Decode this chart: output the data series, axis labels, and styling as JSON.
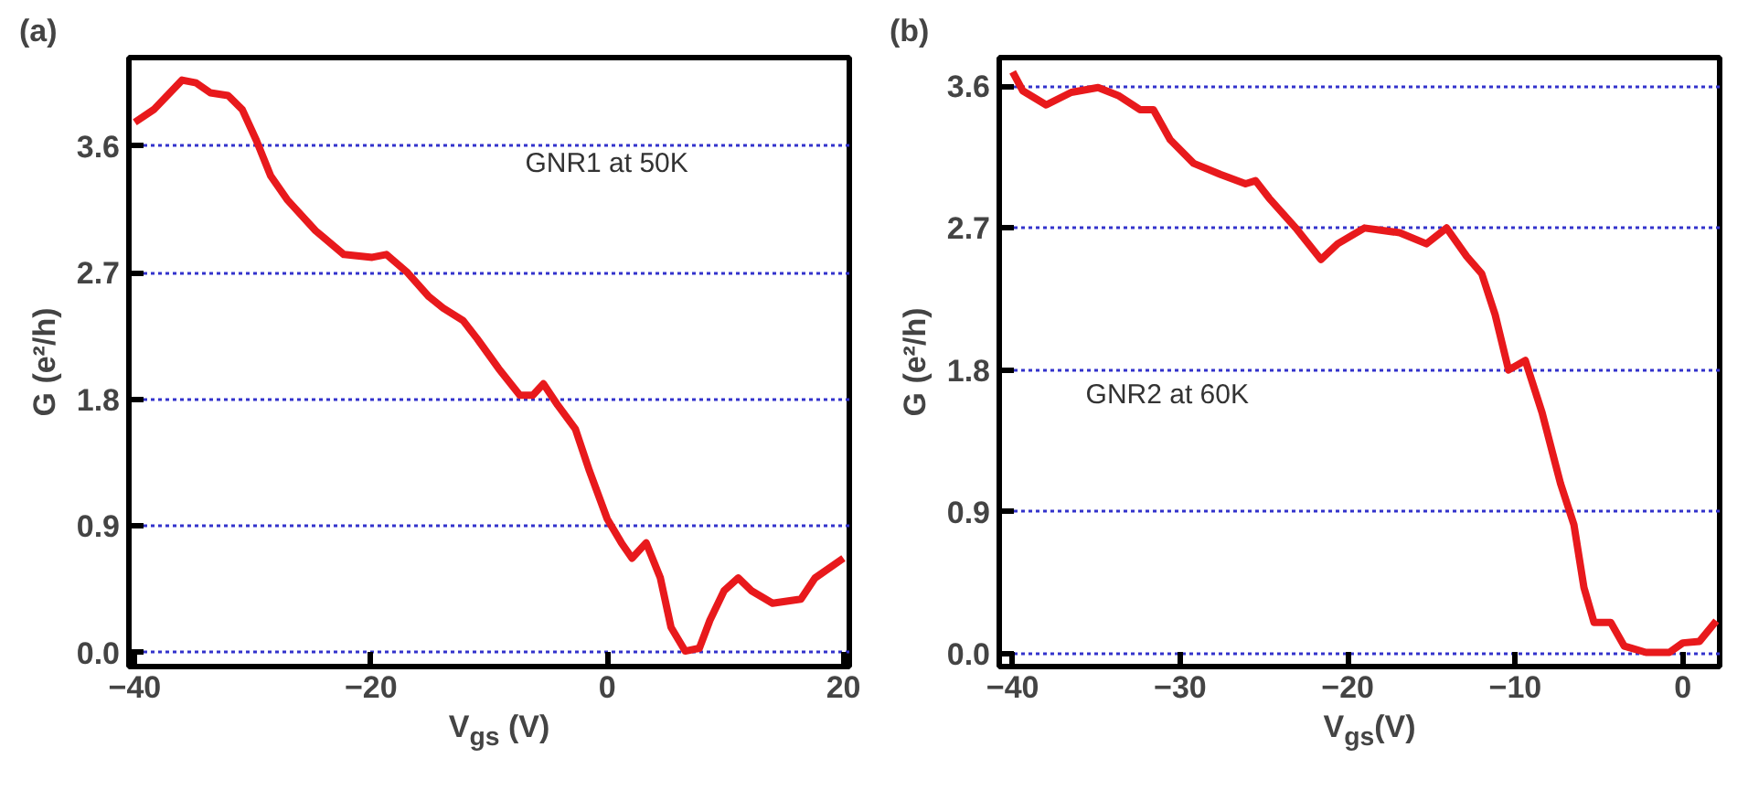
{
  "chart_data": [
    {
      "type": "line",
      "title": "(a)",
      "xlabel": "V$_{gs}$ (V)",
      "ylabel": "G (e²/h)",
      "annotations": [
        "GNR1 at 50K"
      ],
      "xlim": [
        -40.5,
        20.5
      ],
      "ylim": [
        -0.1,
        4.23
      ],
      "xticks": [
        -40,
        -20,
        0,
        20
      ],
      "yticks": [
        {
          "value": 0,
          "label": "0.0"
        },
        0.9,
        1.8,
        2.7,
        3.6
      ],
      "grid": "y",
      "series": [
        {
          "color": "#e8191c",
          "x": [
            -40,
            -38.4,
            -36,
            -34.8,
            -33.6,
            -32.1,
            -30.9,
            -29.7,
            -28.5,
            -27.1,
            -24.7,
            -22.3,
            -19.9,
            -18.7,
            -16.9,
            -15.1,
            -13.9,
            -12.2,
            -11.0,
            -9.2,
            -7.4,
            -6.3,
            -5.4,
            -4.2,
            -2.7,
            -1.5,
            0.0,
            1.2,
            2.1,
            3.3,
            4.5,
            5.4,
            6.6,
            7.8,
            8.7,
            9.9,
            11.1,
            12.2,
            14.0,
            16.4,
            17.6,
            20.0
          ],
          "values": [
            3.77,
            3.86,
            4.07,
            4.05,
            3.98,
            3.96,
            3.86,
            3.64,
            3.39,
            3.22,
            3.0,
            2.83,
            2.81,
            2.83,
            2.7,
            2.53,
            2.45,
            2.36,
            2.23,
            2.02,
            1.83,
            1.83,
            1.91,
            1.76,
            1.59,
            1.29,
            0.95,
            0.78,
            0.67,
            0.78,
            0.53,
            0.18,
            0.01,
            0.03,
            0.23,
            0.44,
            0.53,
            0.44,
            0.35,
            0.38,
            0.53,
            0.67
          ]
        }
      ]
    },
    {
      "type": "line",
      "title": "(b)",
      "xlabel": "V$_{gs}$(V)",
      "ylabel": "G (e²/h)",
      "annotations": [
        "GNR2 at 60K"
      ],
      "xlim": [
        -40.8,
        2.2
      ],
      "ylim": [
        -0.08,
        3.78
      ],
      "xticks": [
        -40,
        -30,
        -20,
        -10,
        0
      ],
      "yticks": [
        {
          "value": 0,
          "label": "0.0"
        },
        0.9,
        1.8,
        2.7,
        3.6
      ],
      "grid": "y",
      "series": [
        {
          "color": "#e8191c",
          "x": [
            -40,
            -39.4,
            -38.0,
            -36.5,
            -34.9,
            -33.7,
            -32.4,
            -31.6,
            -30.6,
            -29.2,
            -27.6,
            -26.1,
            -25.5,
            -24.7,
            -23.1,
            -21.6,
            -20.6,
            -19.0,
            -16.9,
            -15.3,
            -14.1,
            -12.9,
            -12.0,
            -11.2,
            -10.4,
            -9.4,
            -8.4,
            -7.3,
            -6.5,
            -5.9,
            -5.3,
            -4.3,
            -3.5,
            -2.2,
            -0.8,
            0.0,
            1.0,
            2.0
          ],
          "values": [
            3.69,
            3.57,
            3.48,
            3.56,
            3.59,
            3.54,
            3.45,
            3.45,
            3.26,
            3.11,
            3.04,
            2.98,
            3.0,
            2.89,
            2.7,
            2.5,
            2.6,
            2.7,
            2.67,
            2.6,
            2.7,
            2.52,
            2.41,
            2.15,
            1.8,
            1.86,
            1.53,
            1.08,
            0.82,
            0.42,
            0.2,
            0.2,
            0.05,
            0.01,
            0.01,
            0.07,
            0.08,
            0.21
          ]
        }
      ]
    }
  ]
}
